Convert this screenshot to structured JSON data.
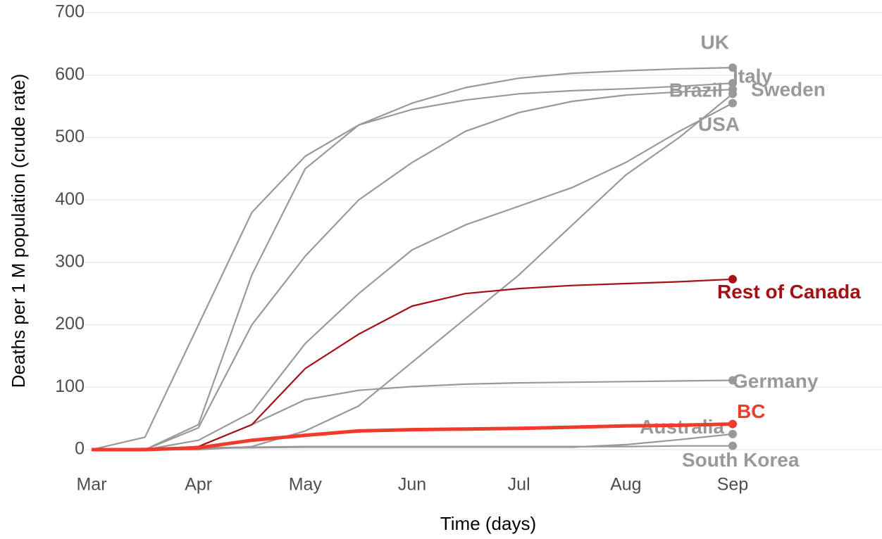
{
  "chart_data": {
    "type": "line",
    "x_label": "Time (days)",
    "y_label": "Deaths per 1 M population (crude rate)",
    "categories": [
      "Mar",
      null,
      "Apr",
      null,
      "May",
      null,
      "Jun",
      null,
      "Jul",
      null,
      "Aug",
      null,
      "Sep"
    ],
    "ylim": [
      0,
      700
    ],
    "yticks": [
      0,
      100,
      200,
      300,
      400,
      500,
      600,
      700
    ],
    "grid": true,
    "series": [
      {
        "name": "UK",
        "color": "#999999",
        "values": [
          0,
          0,
          40,
          280,
          450,
          520,
          555,
          580,
          595,
          603,
          607,
          610,
          612
        ]
      },
      {
        "name": "Italy",
        "color": "#999999",
        "values": [
          0,
          20,
          200,
          380,
          470,
          520,
          545,
          560,
          570,
          575,
          578,
          582,
          587
        ]
      },
      {
        "name": "Brazil",
        "color": "#999999",
        "values": [
          0,
          0,
          0,
          5,
          30,
          70,
          140,
          210,
          280,
          360,
          440,
          500,
          570
        ]
      },
      {
        "name": "Sweden",
        "color": "#999999",
        "values": [
          0,
          0,
          35,
          200,
          310,
          400,
          460,
          510,
          540,
          558,
          568,
          573,
          577
        ]
      },
      {
        "name": "USA",
        "color": "#999999",
        "values": [
          0,
          0,
          15,
          60,
          170,
          250,
          320,
          360,
          390,
          420,
          460,
          510,
          555
        ]
      },
      {
        "name": "Rest of Canada",
        "color": "#a50f15",
        "values": [
          0,
          0,
          5,
          40,
          130,
          185,
          230,
          250,
          258,
          263,
          266,
          269,
          273
        ]
      },
      {
        "name": "Germany",
        "color": "#999999",
        "values": [
          0,
          0,
          5,
          40,
          80,
          95,
          101,
          105,
          107,
          108,
          109,
          110,
          111
        ]
      },
      {
        "name": "BC",
        "color": "#ee3b2b",
        "values": [
          0,
          0,
          3,
          15,
          23,
          30,
          32,
          33,
          34,
          36,
          38,
          39,
          41
        ]
      },
      {
        "name": "Australia",
        "color": "#999999",
        "values": [
          0,
          0,
          2,
          3,
          4,
          4,
          4,
          4,
          4,
          4,
          8,
          16,
          25
        ]
      },
      {
        "name": "South Korea",
        "color": "#999999",
        "values": [
          0,
          2,
          3,
          4,
          5,
          5,
          5,
          5,
          5,
          5,
          5,
          6,
          6
        ]
      }
    ]
  }
}
